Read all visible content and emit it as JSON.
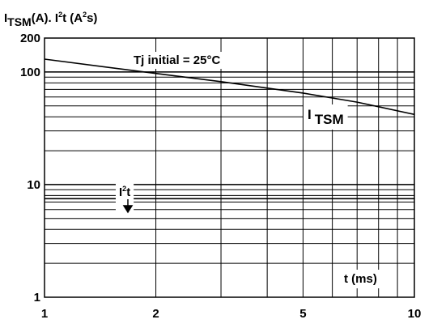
{
  "chart_data": {
    "type": "line",
    "title": {
      "i_base": "I",
      "i_sub": "TSM",
      "mid": "(A). I",
      "sup1": "2",
      "t": "t (A",
      "sup2": "2",
      "end": "s)"
    },
    "x_scale": "log",
    "y_scale": "log",
    "xlim": [
      1,
      10
    ],
    "ylim": [
      1,
      200
    ],
    "x_ticks": [
      {
        "value": 1,
        "label": "1"
      },
      {
        "value": 2,
        "label": "2"
      },
      {
        "value": 5,
        "label": "5"
      },
      {
        "value": 10,
        "label": "10"
      }
    ],
    "y_ticks": [
      {
        "value": 1,
        "label": "1"
      },
      {
        "value": 10,
        "label": "10"
      },
      {
        "value": 100,
        "label": "100"
      },
      {
        "value": 200,
        "label": "200"
      }
    ],
    "grid": true,
    "series": [
      {
        "name": "I TSM",
        "x": [
          1,
          2,
          3,
          5,
          7,
          10
        ],
        "y": [
          130,
          97,
          82,
          65,
          54,
          42
        ]
      },
      {
        "name": "I²t",
        "x": [
          1,
          10
        ],
        "y": [
          7.5,
          7.5
        ]
      }
    ],
    "annotations": {
      "condition": "Tj initial = 25°C",
      "itsm_label_base": "I",
      "itsm_label_sub": "TSM",
      "i2t_label_base": "I",
      "i2t_label_sup": "2",
      "i2t_label_t": "t",
      "x_unit": "t (ms)"
    },
    "colors": {
      "line": "#000000",
      "grid": "#000000",
      "background": "#ffffff"
    }
  }
}
